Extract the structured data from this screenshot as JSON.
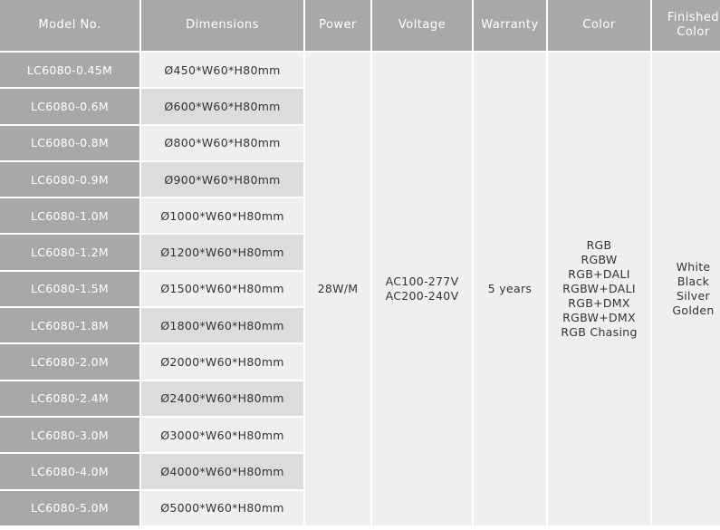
{
  "headers": [
    "Model No.",
    "Dimensions",
    "Power",
    "Voltage",
    "Warranty",
    "Color",
    "Finished Color"
  ],
  "rows": [
    {
      "model": "LC6080-0.45M",
      "dimensions": "Ø450*W60*H80mm"
    },
    {
      "model": "LC6080-0.6M",
      "dimensions": "Ø600*W60*H80mm"
    },
    {
      "model": "LC6080-0.8M",
      "dimensions": "Ø800*W60*H80mm"
    },
    {
      "model": "LC6080-0.9M",
      "dimensions": "Ø900*W60*H80mm"
    },
    {
      "model": "LC6080-1.0M",
      "dimensions": "Ø1000*W60*H80mm"
    },
    {
      "model": "LC6080-1.2M",
      "dimensions": "Ø1200*W60*H80mm"
    },
    {
      "model": "LC6080-1.5M",
      "dimensions": "Ø1500*W60*H80mm"
    },
    {
      "model": "LC6080-1.8M",
      "dimensions": "Ø1800*W60*H80mm"
    },
    {
      "model": "LC6080-2.0M",
      "dimensions": "Ø2000*W60*H80mm"
    },
    {
      "model": "LC6080-2.4M",
      "dimensions": "Ø2400*W60*H80mm"
    },
    {
      "model": "LC6080-3.0M",
      "dimensions": "Ø3000*W60*H80mm"
    },
    {
      "model": "LC6080-4.0M",
      "dimensions": "Ø4000*W60*H80mm"
    },
    {
      "model": "LC6080-5.0M",
      "dimensions": "Ø5000*W60*H80mm"
    }
  ],
  "power": "28W/M",
  "voltage": [
    "AC100-277V",
    "AC200-240V"
  ],
  "warranty": "5 years",
  "color": [
    "RGB",
    "RGBW",
    "RGB+DALI",
    "RGBW+DALI",
    "RGB+DMX",
    "RGBW+DMX",
    "RGB Chasing"
  ],
  "finished_color": [
    "White",
    "Black",
    "Silver",
    "Golden"
  ],
  "colors": {
    "header_bg": "#a8a8a8",
    "cell_bg": "#efefef",
    "cell_alt_bg": "#dcdcdc"
  }
}
